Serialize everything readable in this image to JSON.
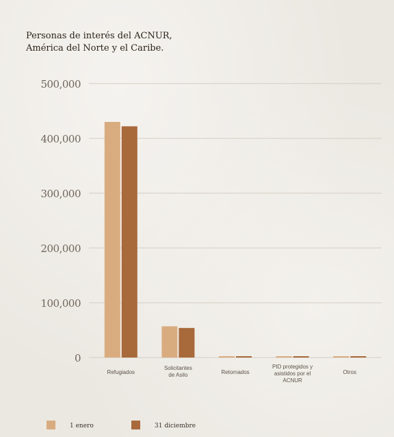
{
  "chart_data": {
    "type": "bar",
    "title_lines": [
      "Personas de interés del ACNUR,",
      "América del Norte y el Caribe."
    ],
    "categories": [
      [
        "Refugiados"
      ],
      [
        "Solicitantes",
        "de Asilo"
      ],
      [
        "Retornados"
      ],
      [
        "PID protegidos y",
        "asistidos por el",
        "ACNUR"
      ],
      [
        "Otros"
      ]
    ],
    "series": [
      {
        "name": "1 enero",
        "color": "#d9ac80",
        "values": [
          430000,
          57000,
          0,
          0,
          0
        ]
      },
      {
        "name": "31 diciembre",
        "color": "#a8693b",
        "values": [
          422000,
          54000,
          0,
          0,
          0
        ]
      }
    ],
    "ylim": [
      0,
      500000
    ],
    "yticks": [
      0,
      100000,
      200000,
      300000,
      400000,
      500000
    ],
    "ytick_labels": [
      "0",
      "100,000",
      "200,000",
      "300,000",
      "400,000",
      "500,000"
    ],
    "grid": true,
    "legend_position": "bottom-left"
  }
}
